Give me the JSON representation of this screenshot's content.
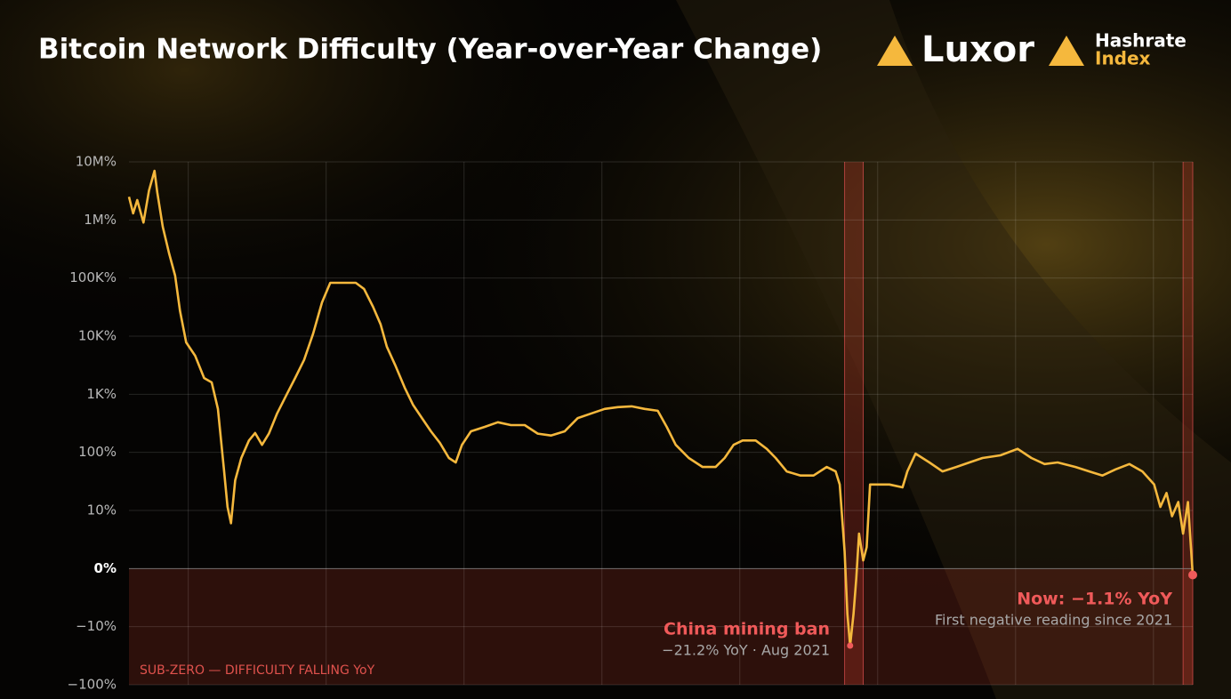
{
  "logos": {
    "brand": "Luxor",
    "product": [
      "Hashrate",
      "Index"
    ]
  },
  "chart_data": {
    "type": "line",
    "title": "Bitcoin Network Difficulty (Year-over-Year Change)",
    "yscale": "symlog",
    "color": "#f5b83d",
    "grid": true,
    "xlim": [
      2011.14,
      2026.57
    ],
    "xticks": [
      2012,
      2014,
      2016,
      2018,
      2020,
      2022,
      2024,
      2026
    ],
    "ylim": [
      -100,
      10000000
    ],
    "yticks": [
      {
        "value": -100,
        "label": "−100%"
      },
      {
        "value": -10,
        "label": "−10%"
      },
      {
        "value": 0,
        "label": "0%"
      },
      {
        "value": 10,
        "label": "10%"
      },
      {
        "value": 100,
        "label": "100%"
      },
      {
        "value": 1000,
        "label": "1K%"
      },
      {
        "value": 10000,
        "label": "10K%"
      },
      {
        "value": 100000,
        "label": "100K%"
      },
      {
        "value": 1000000,
        "label": "1M%"
      },
      {
        "value": 10000000,
        "label": "10M%"
      }
    ],
    "x": [
      2011.14,
      2011.2,
      2011.26,
      2011.35,
      2011.43,
      2011.51,
      2011.55,
      2011.63,
      2011.72,
      2011.81,
      2011.88,
      2011.97,
      2012.1,
      2012.23,
      2012.34,
      2012.43,
      2012.52,
      2012.57,
      2012.62,
      2012.68,
      2012.77,
      2012.88,
      2012.97,
      2013.07,
      2013.17,
      2013.29,
      2013.42,
      2013.55,
      2013.68,
      2013.81,
      2013.94,
      2014.06,
      2014.23,
      2014.43,
      2014.55,
      2014.68,
      2014.79,
      2014.88,
      2015.0,
      2015.14,
      2015.26,
      2015.39,
      2015.52,
      2015.65,
      2015.78,
      2015.88,
      2015.97,
      2016.1,
      2016.3,
      2016.49,
      2016.68,
      2016.88,
      2017.07,
      2017.26,
      2017.46,
      2017.65,
      2017.85,
      2018.04,
      2018.23,
      2018.43,
      2018.62,
      2018.81,
      2018.94,
      2019.07,
      2019.26,
      2019.46,
      2019.65,
      2019.78,
      2019.91,
      2020.04,
      2020.23,
      2020.39,
      2020.52,
      2020.68,
      2020.88,
      2021.07,
      2021.26,
      2021.39,
      2021.45,
      2021.52,
      2021.56,
      2021.6,
      2021.65,
      2021.69,
      2021.73,
      2021.79,
      2021.84,
      2021.89,
      2021.98,
      2022.17,
      2022.36,
      2022.43,
      2022.55,
      2022.75,
      2022.94,
      2023.14,
      2023.33,
      2023.52,
      2023.78,
      2024.03,
      2024.23,
      2024.42,
      2024.61,
      2024.87,
      2025.07,
      2025.26,
      2025.45,
      2025.65,
      2025.84,
      2026.01,
      2026.1,
      2026.19,
      2026.27,
      2026.36,
      2026.43,
      2026.5,
      2026.57
    ],
    "values": [
      2500000,
      1300000,
      2200000,
      900000,
      3200000,
      7000000,
      3000000,
      760000,
      270000,
      110000,
      27000,
      7800,
      4600,
      1900,
      1600,
      560,
      47,
      11.5,
      7.8,
      33,
      80,
      160,
      215,
      135,
      210,
      470,
      950,
      1900,
      3900,
      11000,
      38000,
      83000,
      83000,
      83000,
      65000,
      32000,
      16000,
      6600,
      3200,
      1300,
      660,
      390,
      230,
      145,
      80,
      67,
      135,
      230,
      275,
      330,
      295,
      295,
      210,
      195,
      230,
      390,
      470,
      560,
      600,
      620,
      560,
      520,
      275,
      135,
      80,
      56,
      56,
      80,
      135,
      160,
      160,
      115,
      80,
      47,
      40,
      40,
      56,
      47,
      28,
      2.9,
      -7.8,
      -21.2,
      -7.8,
      -1.7,
      6.0,
      1.4,
      3.7,
      28,
      28,
      28,
      25,
      47,
      95,
      67,
      47,
      56,
      67,
      80,
      89,
      115,
      80,
      63,
      67,
      56,
      47,
      40,
      51,
      63,
      47,
      28,
      11.5,
      20,
      9.0,
      14,
      6.0,
      14,
      -1.1
    ],
    "highlights": [
      [
        2021.52,
        2021.79
      ],
      [
        2026.43,
        2026.57
      ]
    ],
    "zone_label": "SUB-ZERO — DIFFICULTY FALLING YoY",
    "annotations": [
      {
        "x": 2021.6,
        "y": -21.2,
        "title": "China mining ban",
        "text": "−21.2% YoY · Aug 2021"
      },
      {
        "x": 2026.57,
        "y": -1.1,
        "title": "Now: −1.1% YoY",
        "text": "First negative reading since 2021"
      }
    ]
  }
}
